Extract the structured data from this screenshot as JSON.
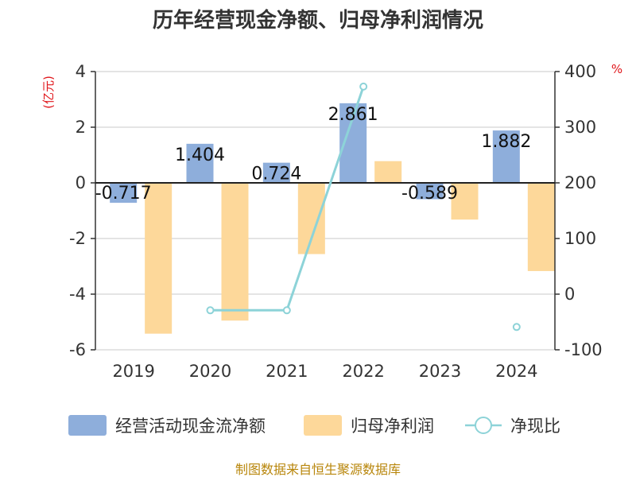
{
  "chart_data": {
    "type": "bar",
    "title": "历年经营现金净额、归母净利润情况",
    "categories": [
      "2019",
      "2020",
      "2021",
      "2022",
      "2023",
      "2024"
    ],
    "left_axis": {
      "unit": "(亿元)",
      "ylim": [
        -6,
        4
      ],
      "ticks": [
        4,
        2,
        0,
        -2,
        -4,
        -6
      ]
    },
    "right_axis": {
      "unit": "%",
      "ylim": [
        -100,
        400
      ],
      "ticks": [
        400,
        300,
        200,
        100,
        0,
        -100
      ]
    },
    "series": [
      {
        "name": "经营活动现金流净额",
        "type": "bar",
        "axis": "left",
        "color": "#8eaedb",
        "values": [
          -0.717,
          1.404,
          0.724,
          2.861,
          -0.589,
          1.882
        ],
        "labels": [
          "-0.717",
          "1.404",
          "0.724",
          "2.861",
          "-0.589",
          "1.882"
        ]
      },
      {
        "name": "归母净利润",
        "type": "bar",
        "axis": "left",
        "color": "#fdd89a",
        "values": [
          -5.42,
          -4.95,
          -2.56,
          0.78,
          -1.32,
          -3.17
        ]
      },
      {
        "name": "净现比",
        "type": "line",
        "axis": "right",
        "color": "#8dd3d8",
        "values": [
          null,
          -29,
          -29,
          373,
          null,
          -59
        ]
      }
    ],
    "grid": true,
    "legend_position": "bottom"
  },
  "source": "制图数据来自恒生聚源数据库"
}
